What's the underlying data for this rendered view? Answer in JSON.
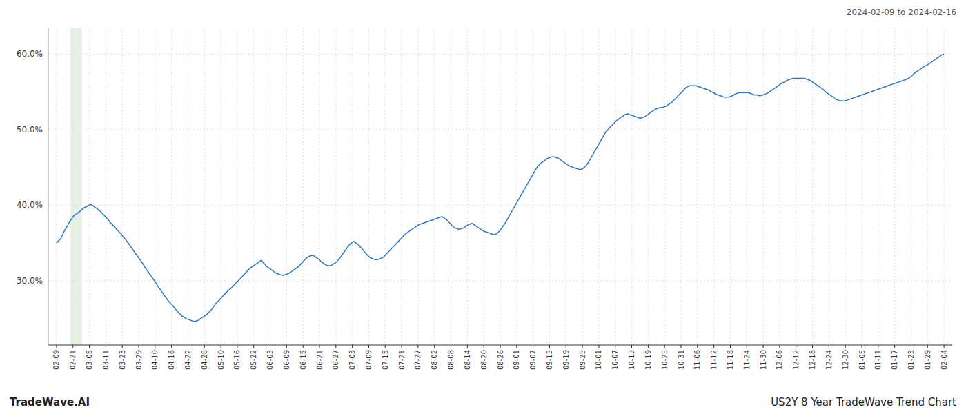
{
  "chart_data": {
    "type": "line",
    "title": "US2Y 8 Year TradeWave Trend Chart",
    "subtitle": "2024-02-09 to 2024-02-16",
    "annotations": [
      "TradeWave.AI"
    ],
    "color": "#2878c8",
    "grid": true,
    "xlim": [
      -0.5,
      54.5
    ],
    "xticks": [
      {
        "value": 0,
        "label": "02-09"
      },
      {
        "value": 1,
        "label": "02-21"
      },
      {
        "value": 2,
        "label": "03-05"
      },
      {
        "value": 3,
        "label": "03-11"
      },
      {
        "value": 4,
        "label": "03-23"
      },
      {
        "value": 5,
        "label": "03-29"
      },
      {
        "value": 6,
        "label": "04-10"
      },
      {
        "value": 7,
        "label": "04-16"
      },
      {
        "value": 8,
        "label": "04-22"
      },
      {
        "value": 9,
        "label": "04-28"
      },
      {
        "value": 10,
        "label": "05-10"
      },
      {
        "value": 11,
        "label": "05-16"
      },
      {
        "value": 12,
        "label": "05-22"
      },
      {
        "value": 13,
        "label": "06-03"
      },
      {
        "value": 14,
        "label": "06-09"
      },
      {
        "value": 15,
        "label": "06-15"
      },
      {
        "value": 16,
        "label": "06-21"
      },
      {
        "value": 17,
        "label": "06-27"
      },
      {
        "value": 18,
        "label": "07-03"
      },
      {
        "value": 19,
        "label": "07-09"
      },
      {
        "value": 20,
        "label": "07-15"
      },
      {
        "value": 21,
        "label": "07-21"
      },
      {
        "value": 22,
        "label": "07-27"
      },
      {
        "value": 23,
        "label": "08-02"
      },
      {
        "value": 24,
        "label": "08-08"
      },
      {
        "value": 25,
        "label": "08-14"
      },
      {
        "value": 26,
        "label": "08-20"
      },
      {
        "value": 27,
        "label": "08-26"
      },
      {
        "value": 28,
        "label": "09-01"
      },
      {
        "value": 29,
        "label": "09-07"
      },
      {
        "value": 30,
        "label": "09-13"
      },
      {
        "value": 31,
        "label": "09-19"
      },
      {
        "value": 32,
        "label": "09-25"
      },
      {
        "value": 33,
        "label": "10-01"
      },
      {
        "value": 34,
        "label": "10-07"
      },
      {
        "value": 35,
        "label": "10-13"
      },
      {
        "value": 36,
        "label": "10-19"
      },
      {
        "value": 37,
        "label": "10-25"
      },
      {
        "value": 38,
        "label": "10-31"
      },
      {
        "value": 39,
        "label": "11-06"
      },
      {
        "value": 40,
        "label": "11-12"
      },
      {
        "value": 41,
        "label": "11-18"
      },
      {
        "value": 42,
        "label": "11-24"
      },
      {
        "value": 43,
        "label": "11-30"
      },
      {
        "value": 44,
        "label": "12-06"
      },
      {
        "value": 45,
        "label": "12-12"
      },
      {
        "value": 46,
        "label": "12-18"
      },
      {
        "value": 47,
        "label": "12-24"
      },
      {
        "value": 48,
        "label": "12-30"
      },
      {
        "value": 49,
        "label": "01-05"
      },
      {
        "value": 50,
        "label": "01-11"
      },
      {
        "value": 51,
        "label": "01-17"
      },
      {
        "value": 52,
        "label": "01-23"
      },
      {
        "value": 53,
        "label": "01-29"
      },
      {
        "value": 54,
        "label": "02-04"
      }
    ],
    "ylim": [
      0.215,
      0.635
    ],
    "yticks": [
      {
        "value": 0.3,
        "label": "30.0%"
      },
      {
        "value": 0.4,
        "label": "40.0%"
      },
      {
        "value": 0.5,
        "label": "50.0%"
      },
      {
        "value": 0.6,
        "label": "60.0%"
      }
    ],
    "regions": [
      {
        "start": 0.85,
        "end": 1.55,
        "color": "#d4e8d4"
      }
    ],
    "values": [
      0.35,
      0.353,
      0.356,
      0.362,
      0.368,
      0.372,
      0.378,
      0.382,
      0.386,
      0.388,
      0.39,
      0.392,
      0.395,
      0.397,
      0.398,
      0.4,
      0.401,
      0.399,
      0.397,
      0.395,
      0.393,
      0.39,
      0.387,
      0.384,
      0.381,
      0.377,
      0.374,
      0.371,
      0.368,
      0.365,
      0.362,
      0.358,
      0.355,
      0.351,
      0.347,
      0.343,
      0.339,
      0.335,
      0.331,
      0.327,
      0.323,
      0.318,
      0.314,
      0.31,
      0.306,
      0.302,
      0.298,
      0.293,
      0.289,
      0.285,
      0.281,
      0.277,
      0.273,
      0.27,
      0.267,
      0.263,
      0.26,
      0.257,
      0.254,
      0.252,
      0.25,
      0.249,
      0.248,
      0.247,
      0.246,
      0.247,
      0.248,
      0.25,
      0.252,
      0.254,
      0.256,
      0.259,
      0.262,
      0.266,
      0.27,
      0.273,
      0.276,
      0.279,
      0.282,
      0.285,
      0.288,
      0.29,
      0.293,
      0.296,
      0.299,
      0.302,
      0.305,
      0.308,
      0.311,
      0.314,
      0.317,
      0.319,
      0.321,
      0.323,
      0.325,
      0.327,
      0.324,
      0.321,
      0.318,
      0.316,
      0.314,
      0.312,
      0.31,
      0.309,
      0.308,
      0.307,
      0.308,
      0.309,
      0.31,
      0.312,
      0.314,
      0.316,
      0.318,
      0.321,
      0.324,
      0.327,
      0.33,
      0.332,
      0.333,
      0.334,
      0.332,
      0.33,
      0.328,
      0.325,
      0.323,
      0.321,
      0.32,
      0.32,
      0.321,
      0.323,
      0.325,
      0.328,
      0.332,
      0.336,
      0.34,
      0.344,
      0.348,
      0.35,
      0.352,
      0.35,
      0.348,
      0.345,
      0.342,
      0.338,
      0.335,
      0.332,
      0.33,
      0.329,
      0.328,
      0.328,
      0.329,
      0.33,
      0.332,
      0.335,
      0.338,
      0.341,
      0.344,
      0.347,
      0.35,
      0.353,
      0.356,
      0.359,
      0.362,
      0.364,
      0.366,
      0.368,
      0.37,
      0.372,
      0.374,
      0.375,
      0.376,
      0.377,
      0.378,
      0.379,
      0.38,
      0.381,
      0.382,
      0.383,
      0.384,
      0.385,
      0.383,
      0.381,
      0.378,
      0.375,
      0.372,
      0.37,
      0.369,
      0.368,
      0.369,
      0.37,
      0.372,
      0.374,
      0.375,
      0.376,
      0.374,
      0.372,
      0.37,
      0.368,
      0.366,
      0.365,
      0.364,
      0.363,
      0.362,
      0.361,
      0.362,
      0.364,
      0.367,
      0.371,
      0.375,
      0.38,
      0.385,
      0.39,
      0.395,
      0.4,
      0.405,
      0.41,
      0.415,
      0.42,
      0.425,
      0.43,
      0.435,
      0.44,
      0.445,
      0.45,
      0.453,
      0.456,
      0.458,
      0.46,
      0.462,
      0.463,
      0.464,
      0.464,
      0.463,
      0.462,
      0.46,
      0.458,
      0.456,
      0.454,
      0.452,
      0.451,
      0.45,
      0.449,
      0.448,
      0.447,
      0.448,
      0.45,
      0.453,
      0.457,
      0.462,
      0.467,
      0.472,
      0.477,
      0.482,
      0.487,
      0.492,
      0.497,
      0.5,
      0.503,
      0.506,
      0.509,
      0.512,
      0.514,
      0.516,
      0.518,
      0.52,
      0.521,
      0.52,
      0.519,
      0.518,
      0.517,
      0.516,
      0.515,
      0.516,
      0.517,
      0.519,
      0.521,
      0.523,
      0.525,
      0.527,
      0.528,
      0.529,
      0.529,
      0.53,
      0.531,
      0.533,
      0.535,
      0.537,
      0.54,
      0.543,
      0.546,
      0.549,
      0.552,
      0.555,
      0.557,
      0.558,
      0.558,
      0.558,
      0.558,
      0.557,
      0.556,
      0.555,
      0.554,
      0.553,
      0.552,
      0.55,
      0.549,
      0.547,
      0.546,
      0.545,
      0.544,
      0.543,
      0.543,
      0.543,
      0.544,
      0.545,
      0.547,
      0.548,
      0.549,
      0.549,
      0.549,
      0.549,
      0.549,
      0.548,
      0.547,
      0.546,
      0.546,
      0.545,
      0.545,
      0.546,
      0.547,
      0.548,
      0.55,
      0.552,
      0.554,
      0.556,
      0.558,
      0.56,
      0.562,
      0.563,
      0.565,
      0.566,
      0.567,
      0.568,
      0.568,
      0.568,
      0.568,
      0.568,
      0.568,
      0.567,
      0.566,
      0.565,
      0.563,
      0.561,
      0.559,
      0.557,
      0.555,
      0.553,
      0.55,
      0.548,
      0.546,
      0.544,
      0.542,
      0.54,
      0.539,
      0.538,
      0.538,
      0.538,
      0.539,
      0.54,
      0.541,
      0.542,
      0.543,
      0.544,
      0.545,
      0.546,
      0.547,
      0.548,
      0.549,
      0.55,
      0.551,
      0.552,
      0.553,
      0.554,
      0.555,
      0.556,
      0.557,
      0.558,
      0.559,
      0.56,
      0.561,
      0.562,
      0.563,
      0.564,
      0.565,
      0.566,
      0.567,
      0.569,
      0.571,
      0.574,
      0.576,
      0.578,
      0.58,
      0.582,
      0.584,
      0.585,
      0.587,
      0.589,
      0.591,
      0.593,
      0.595,
      0.597,
      0.599,
      0.6
    ]
  }
}
